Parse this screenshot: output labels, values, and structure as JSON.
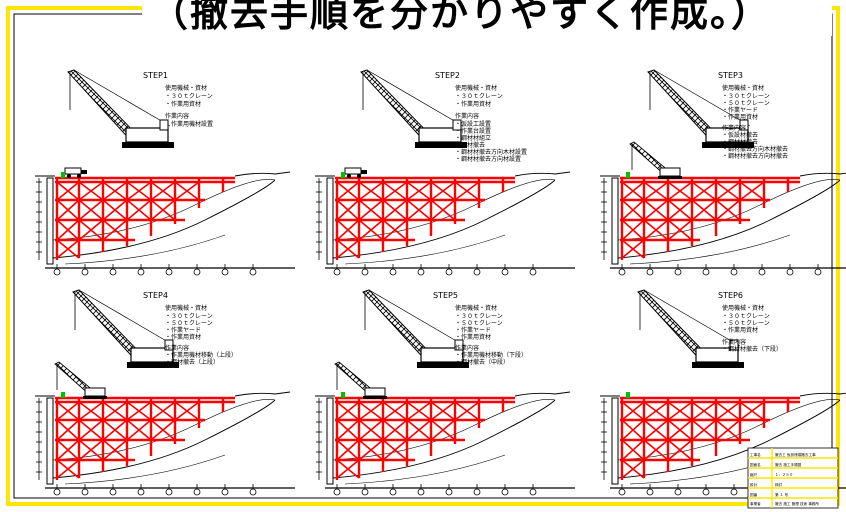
{
  "title": "（撤去手順を分かりやすく作成。）",
  "steps": [
    {
      "label": "STEP1",
      "equipment_header": "使用機械・資材",
      "equipment": [
        "・３０ｔクレーン",
        "・作業用資材"
      ],
      "work_header": "作業内容",
      "work": [
        "・作業用機材設置"
      ]
    },
    {
      "label": "STEP2",
      "equipment_header": "使用機械・資材",
      "equipment": [
        "・３０ｔクレーン",
        "・作業用資材"
      ],
      "work_header": "作業内容",
      "work": [
        "・仮設工設置",
        "・作業台設置",
        "・鋼材材組立",
        "・鋼材撤去",
        "・鋼材材撤去方向木材設置",
        "・鋼材材撤去方向材設置"
      ]
    },
    {
      "label": "STEP3",
      "equipment_header": "使用機械・資材",
      "equipment": [
        "・３０ｔクレーン",
        "・５０ｔクレーン",
        "・作業ヤード",
        "・作業用資材"
      ],
      "work_header": "作業内容",
      "work": [
        "・仮設材撤去",
        "・鋼材材撤去",
        "・鋼材撤去方向木材撤去",
        "・鋼材材撤去方向材撤去"
      ]
    },
    {
      "label": "STEP4",
      "equipment_header": "使用機械・資材",
      "equipment": [
        "・３０ｔクレーン",
        "・５０ｔクレーン",
        "・作業ヤード",
        "・作業用資材"
      ],
      "work_header": "作業内容",
      "work": [
        "・作業用機材移動（上段）",
        "・鋼材撤去（上段）"
      ]
    },
    {
      "label": "STEP5",
      "equipment_header": "使用機械・資材",
      "equipment": [
        "・３０ｔクレーン",
        "・５０ｔクレーン",
        "・作業ヤード",
        "・作業用資材"
      ],
      "work_header": "作業内容",
      "work": [
        "・作業用機材移動（下段）",
        "・鋼材撤去（中段）"
      ]
    },
    {
      "label": "STEP6",
      "equipment_header": "使用機械・資材",
      "equipment": [
        "・３０ｔクレーン",
        "・５０ｔクレーン",
        "・作業用資材"
      ],
      "work_header": "作業内容",
      "work": [
        "・鋼材材撤去（下段）"
      ]
    }
  ],
  "title_block": {
    "rows": [
      {
        "label": "工事名",
        "value": "撤去工 仮設桟橋撤去工事"
      },
      {
        "label": "図面名",
        "value": "撤去 施工手順図"
      },
      {
        "label": "縮尺",
        "value": "１：２５０"
      },
      {
        "label": "設計",
        "value": "検討"
      },
      {
        "label": "図番",
        "value": "第 １ 号"
      },
      {
        "label": "事業者",
        "value": "撤去 施工 管理 技術 事務所"
      }
    ]
  },
  "colors": {
    "frame": "#ffe600",
    "steel": "#ff0000",
    "line": "#000000",
    "marker": "#00c000"
  }
}
